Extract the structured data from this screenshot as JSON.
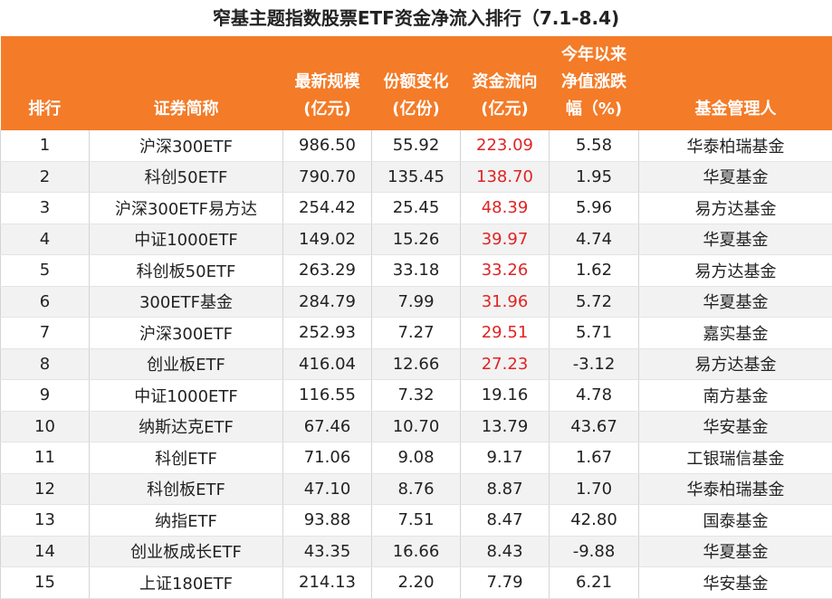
{
  "title": "窄基主题指数股票ETF资金净流入排行（7.1-8.4)",
  "colors": {
    "header_bg": "#f47b28",
    "inflow_highlight": "#e02424"
  },
  "headers": [
    {
      "lines": [
        "排行"
      ]
    },
    {
      "lines": [
        "证券简称"
      ]
    },
    {
      "lines": [
        "最新规模",
        "(亿元)"
      ]
    },
    {
      "lines": [
        "份额变化",
        "(亿份)"
      ]
    },
    {
      "lines": [
        "资金流向",
        "(亿元)"
      ]
    },
    {
      "lines": [
        "今年以来",
        "净值涨跌",
        "幅（%)"
      ]
    },
    {
      "lines": [
        "基金管理人"
      ]
    }
  ],
  "rows": [
    {
      "rank": "1",
      "name": "沪深300ETF",
      "scale": "986.50",
      "share_change": "55.92",
      "flow": "223.09",
      "flow_red": true,
      "ytd": "5.58",
      "manager": "华泰柏瑞基金"
    },
    {
      "rank": "2",
      "name": "科创50ETF",
      "scale": "790.70",
      "share_change": "135.45",
      "flow": "138.70",
      "flow_red": true,
      "ytd": "1.95",
      "manager": "华夏基金"
    },
    {
      "rank": "3",
      "name": "沪深300ETF易方达",
      "scale": "254.42",
      "share_change": "25.45",
      "flow": "48.39",
      "flow_red": true,
      "ytd": "5.96",
      "manager": "易方达基金"
    },
    {
      "rank": "4",
      "name": "中证1000ETF",
      "scale": "149.02",
      "share_change": "15.26",
      "flow": "39.97",
      "flow_red": true,
      "ytd": "4.74",
      "manager": "华夏基金"
    },
    {
      "rank": "5",
      "name": "科创板50ETF",
      "scale": "263.29",
      "share_change": "33.18",
      "flow": "33.26",
      "flow_red": true,
      "ytd": "1.62",
      "manager": "易方达基金"
    },
    {
      "rank": "6",
      "name": "300ETF基金",
      "scale": "284.79",
      "share_change": "7.99",
      "flow": "31.96",
      "flow_red": true,
      "ytd": "5.72",
      "manager": "华夏基金"
    },
    {
      "rank": "7",
      "name": "沪深300ETF",
      "scale": "252.93",
      "share_change": "7.27",
      "flow": "29.51",
      "flow_red": true,
      "ytd": "5.71",
      "manager": "嘉实基金"
    },
    {
      "rank": "8",
      "name": "创业板ETF",
      "scale": "416.04",
      "share_change": "12.66",
      "flow": "27.23",
      "flow_red": true,
      "ytd": "-3.12",
      "manager": "易方达基金"
    },
    {
      "rank": "9",
      "name": "中证1000ETF",
      "scale": "116.55",
      "share_change": "7.32",
      "flow": "19.16",
      "flow_red": false,
      "ytd": "4.78",
      "manager": "南方基金"
    },
    {
      "rank": "10",
      "name": "纳斯达克ETF",
      "scale": "67.46",
      "share_change": "10.70",
      "flow": "13.79",
      "flow_red": false,
      "ytd": "43.67",
      "manager": "华安基金"
    },
    {
      "rank": "11",
      "name": "科创ETF",
      "scale": "71.06",
      "share_change": "9.08",
      "flow": "9.17",
      "flow_red": false,
      "ytd": "1.67",
      "manager": "工银瑞信基金"
    },
    {
      "rank": "12",
      "name": "科创板ETF",
      "scale": "47.10",
      "share_change": "8.76",
      "flow": "8.87",
      "flow_red": false,
      "ytd": "1.70",
      "manager": "华泰柏瑞基金"
    },
    {
      "rank": "13",
      "name": "纳指ETF",
      "scale": "93.88",
      "share_change": "7.51",
      "flow": "8.47",
      "flow_red": false,
      "ytd": "42.80",
      "manager": "国泰基金"
    },
    {
      "rank": "14",
      "name": "创业板成长ETF",
      "scale": "43.35",
      "share_change": "16.66",
      "flow": "8.43",
      "flow_red": false,
      "ytd": "-9.88",
      "manager": "华夏基金"
    },
    {
      "rank": "15",
      "name": "上证180ETF",
      "scale": "214.13",
      "share_change": "2.20",
      "flow": "7.79",
      "flow_red": false,
      "ytd": "6.21",
      "manager": "华安基金"
    }
  ]
}
